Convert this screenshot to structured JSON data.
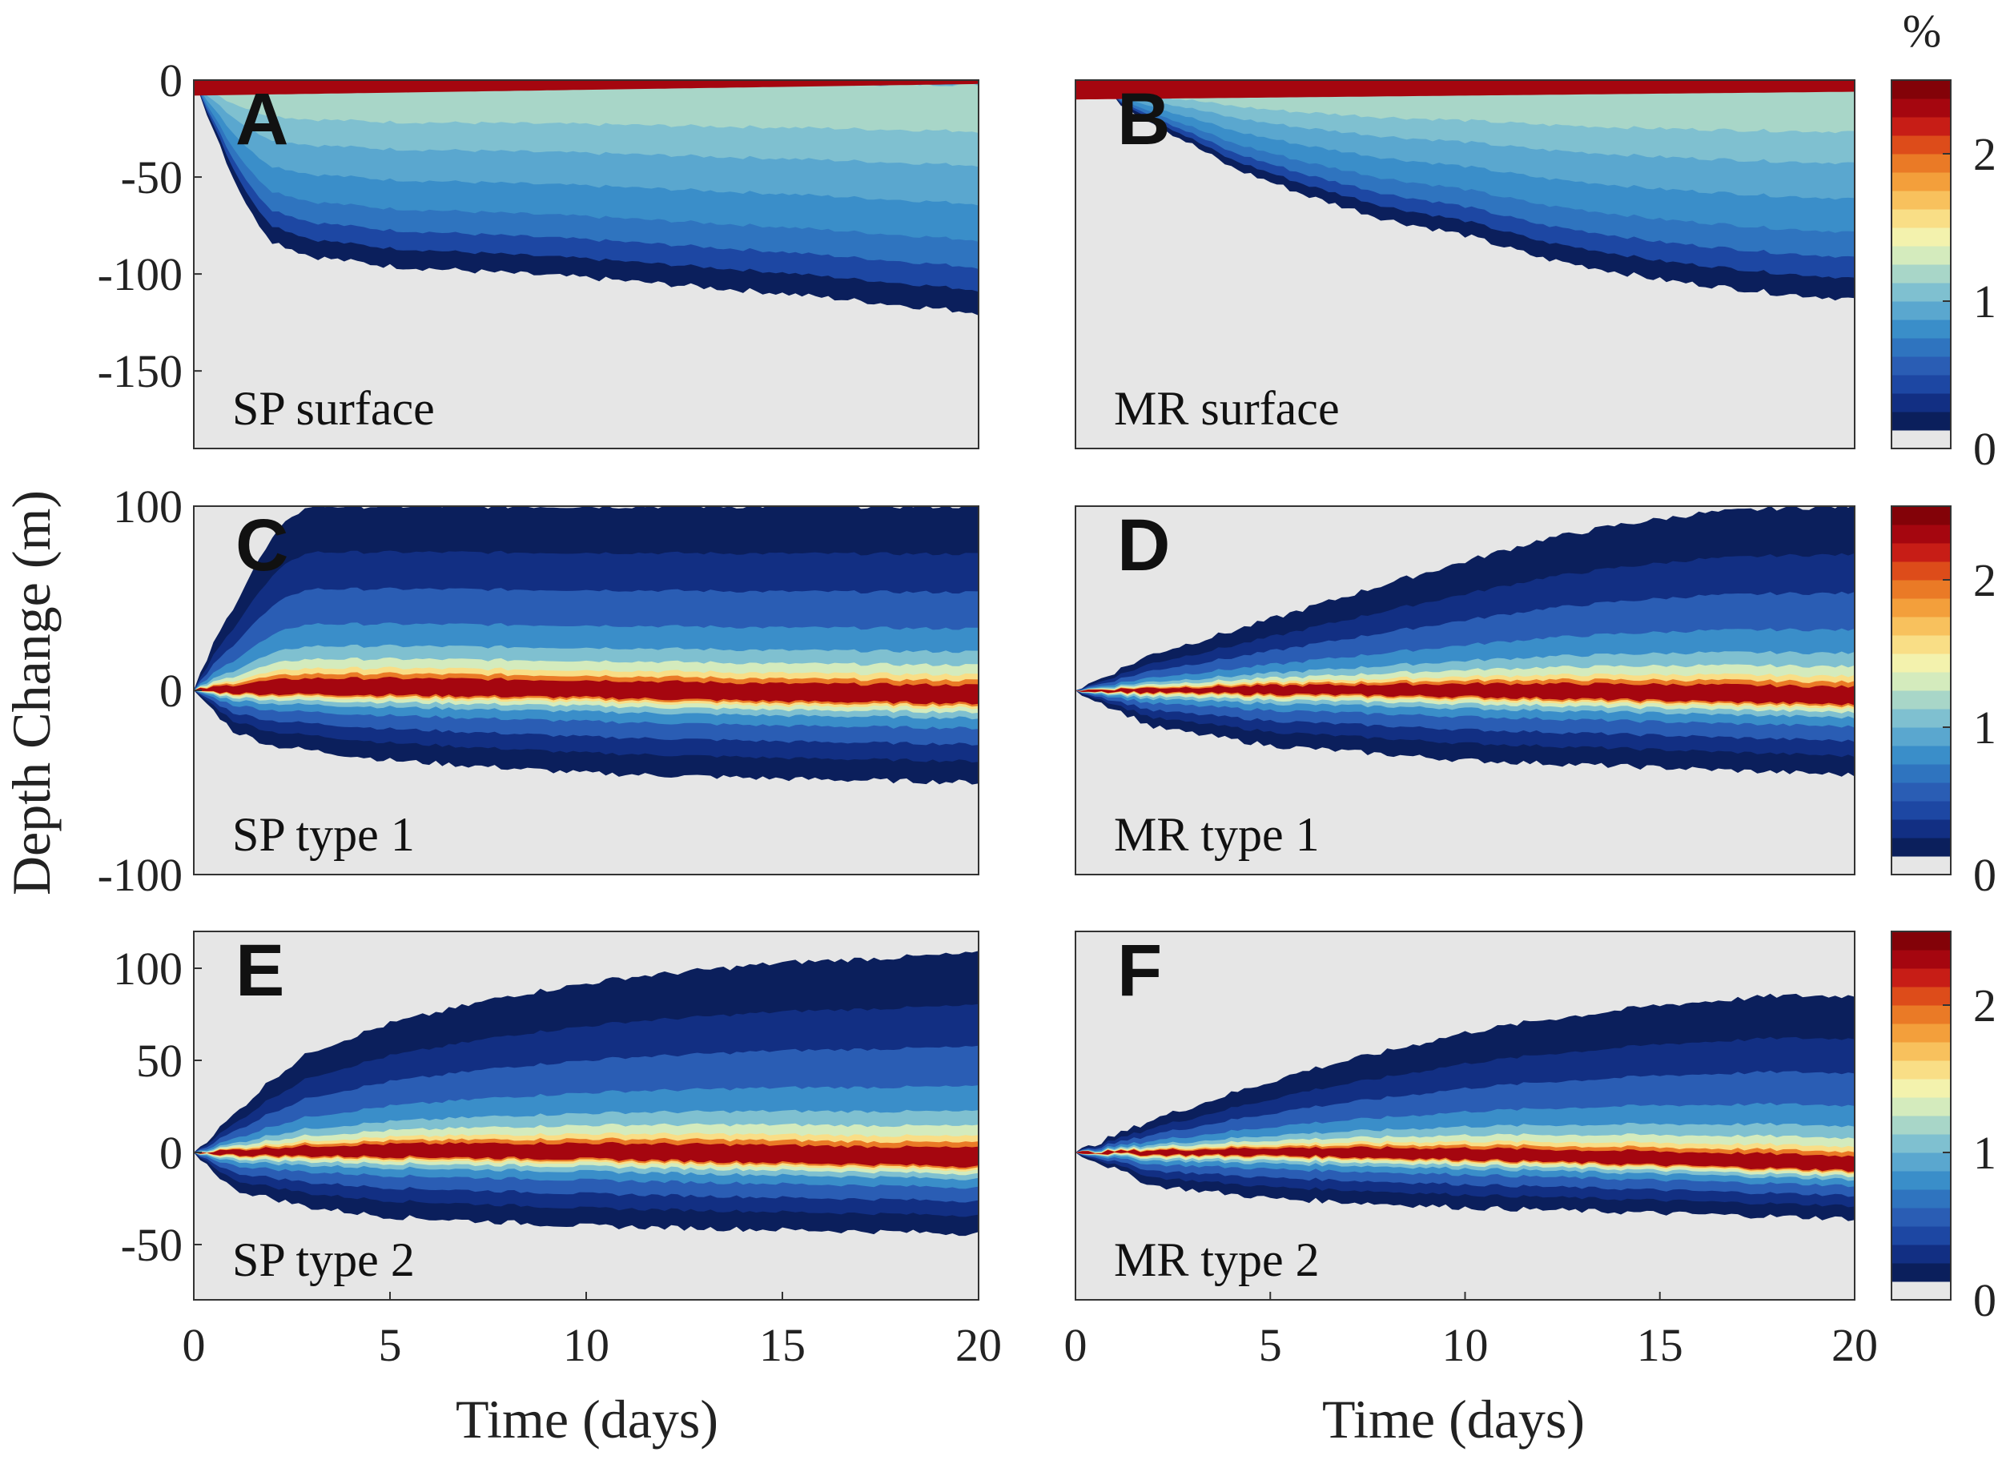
{
  "chart_data": {
    "type": "heatmap",
    "ylabel": "Depth Change (m)",
    "xlabel": "Time (days)",
    "x_ticks": [
      "0",
      "5",
      "10",
      "15",
      "20"
    ],
    "xlim": [
      0,
      20
    ],
    "colorbar": {
      "unit": "%",
      "ticks": [
        "0",
        "1",
        "2"
      ],
      "range": [
        0,
        2.5
      ],
      "colors": [
        "#e6e6e6",
        "#0b1f5c",
        "#122f83",
        "#1d47a3",
        "#2a5db4",
        "#2f74bf",
        "#3a8ec9",
        "#5aa7cf",
        "#7fc0d0",
        "#a8d6c8",
        "#d4ebbd",
        "#f3f2ad",
        "#f9de86",
        "#f8c15d",
        "#f39f3b",
        "#ea7a26",
        "#dd4c1a",
        "#c71d16",
        "#a5060f",
        "#830208"
      ]
    },
    "rows": [
      {
        "yticks": [
          "0",
          "-50",
          "-100",
          "-150"
        ],
        "ylim": [
          -190,
          0
        ]
      },
      {
        "yticks": [
          "100",
          "0",
          "-100"
        ],
        "ylim": [
          -100,
          100
        ]
      },
      {
        "yticks": [
          "100",
          "50",
          "0",
          "-50"
        ],
        "ylim": [
          -80,
          120
        ]
      }
    ],
    "panels": [
      {
        "letter": "A",
        "title": "SP surface",
        "description": "Surface-released particles, SP site",
        "envelope_top": [
          [
            0,
            0
          ],
          [
            1,
            0
          ],
          [
            2,
            0
          ],
          [
            5,
            0
          ],
          [
            10,
            0
          ],
          [
            15,
            0
          ],
          [
            20,
            0
          ]
        ],
        "envelope_bottom": [
          [
            0,
            0
          ],
          [
            0.5,
            -25
          ],
          [
            1,
            -50
          ],
          [
            1.5,
            -70
          ],
          [
            2,
            -83
          ],
          [
            3,
            -91
          ],
          [
            5,
            -96
          ],
          [
            10,
            -102
          ],
          [
            15,
            -110
          ],
          [
            20,
            -120
          ]
        ],
        "core_center": [
          [
            0,
            -2
          ],
          [
            5,
            -3
          ],
          [
            10,
            -3
          ],
          [
            20,
            -3
          ]
        ]
      },
      {
        "letter": "B",
        "title": "MR surface",
        "description": "Surface-released particles, MR site",
        "envelope_top": [
          [
            0,
            0
          ],
          [
            5,
            0
          ],
          [
            10,
            0
          ],
          [
            15,
            0
          ],
          [
            20,
            0
          ]
        ],
        "envelope_bottom": [
          [
            0,
            0
          ],
          [
            1,
            -10
          ],
          [
            2,
            -22
          ],
          [
            4,
            -45
          ],
          [
            6,
            -60
          ],
          [
            8,
            -72
          ],
          [
            10,
            -80
          ],
          [
            12,
            -92
          ],
          [
            15,
            -103
          ],
          [
            18,
            -110
          ],
          [
            20,
            -113
          ]
        ],
        "core_center": [
          [
            0,
            -3
          ],
          [
            5,
            -6
          ],
          [
            10,
            -6
          ],
          [
            20,
            -5
          ]
        ]
      },
      {
        "letter": "C",
        "title": "SP type 1",
        "description": "Type 1 particles, SP site",
        "envelope_top": [
          [
            0,
            0
          ],
          [
            0.5,
            25
          ],
          [
            1,
            45
          ],
          [
            1.5,
            65
          ],
          [
            2,
            82
          ],
          [
            2.5,
            95
          ],
          [
            3,
            100
          ],
          [
            20,
            100
          ]
        ],
        "envelope_bottom": [
          [
            0,
            0
          ],
          [
            1,
            -22
          ],
          [
            2,
            -30
          ],
          [
            5,
            -38
          ],
          [
            10,
            -45
          ],
          [
            15,
            -48
          ],
          [
            20,
            -50
          ]
        ],
        "core_center": [
          [
            0,
            0
          ],
          [
            5,
            0
          ],
          [
            10,
            -1
          ],
          [
            15,
            -3
          ],
          [
            20,
            -4
          ]
        ]
      },
      {
        "letter": "D",
        "title": "MR type 1",
        "description": "Type 1 particles, MR site",
        "envelope_top": [
          [
            0,
            0
          ],
          [
            2,
            20
          ],
          [
            4,
            32
          ],
          [
            6,
            45
          ],
          [
            8,
            58
          ],
          [
            10,
            70
          ],
          [
            12,
            82
          ],
          [
            14,
            90
          ],
          [
            16,
            96
          ],
          [
            18,
            99
          ],
          [
            20,
            100
          ]
        ],
        "envelope_bottom": [
          [
            0,
            0
          ],
          [
            2,
            -20
          ],
          [
            5,
            -30
          ],
          [
            10,
            -38
          ],
          [
            15,
            -42
          ],
          [
            20,
            -46
          ]
        ],
        "core_center": [
          [
            0,
            0
          ],
          [
            5,
            0
          ],
          [
            10,
            -1
          ],
          [
            15,
            -3
          ],
          [
            20,
            -5
          ]
        ]
      },
      {
        "letter": "E",
        "title": "SP type 2",
        "description": "Type 2 particles, SP site",
        "envelope_top": [
          [
            0,
            0
          ],
          [
            1,
            20
          ],
          [
            2,
            40
          ],
          [
            3,
            55
          ],
          [
            5,
            70
          ],
          [
            8,
            85
          ],
          [
            11,
            95
          ],
          [
            15,
            103
          ],
          [
            20,
            108
          ]
        ],
        "envelope_bottom": [
          [
            0,
            0
          ],
          [
            1,
            -20
          ],
          [
            3,
            -30
          ],
          [
            5,
            -35
          ],
          [
            10,
            -40
          ],
          [
            15,
            -42
          ],
          [
            20,
            -44
          ]
        ],
        "core_center": [
          [
            0,
            0
          ],
          [
            5,
            0
          ],
          [
            10,
            -1
          ],
          [
            15,
            -3
          ],
          [
            20,
            -5
          ]
        ]
      },
      {
        "letter": "F",
        "title": "MR type 2",
        "description": "Type 2 particles, MR site",
        "envelope_top": [
          [
            0,
            0
          ],
          [
            2,
            18
          ],
          [
            4,
            32
          ],
          [
            6,
            45
          ],
          [
            8,
            55
          ],
          [
            10,
            65
          ],
          [
            12,
            72
          ],
          [
            15,
            80
          ],
          [
            18,
            85
          ],
          [
            20,
            85
          ]
        ],
        "envelope_bottom": [
          [
            0,
            0
          ],
          [
            2,
            -18
          ],
          [
            5,
            -25
          ],
          [
            10,
            -30
          ],
          [
            15,
            -33
          ],
          [
            20,
            -36
          ]
        ],
        "core_center": [
          [
            0,
            0
          ],
          [
            5,
            0
          ],
          [
            10,
            -2
          ],
          [
            15,
            -5
          ],
          [
            20,
            -8
          ]
        ]
      }
    ]
  }
}
